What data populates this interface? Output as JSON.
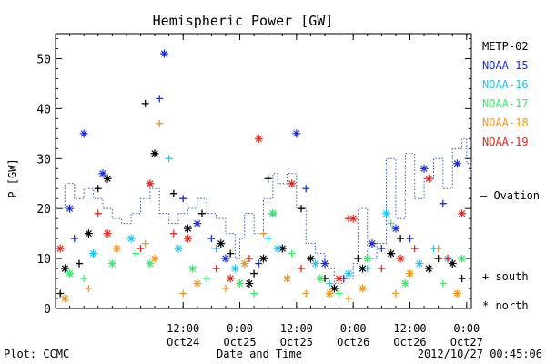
{
  "chart_data": {
    "type": "scatter",
    "title": "Hemispheric Power [GW]",
    "ylabel": "P [GW]",
    "xlabel": "Date and Time",
    "ylim": [
      0,
      55
    ],
    "xlim": [
      "2012-10-23 09:00",
      "2012-10-27 01:00"
    ],
    "yticks": [
      0,
      10,
      20,
      30,
      40,
      50
    ],
    "xticks": [
      {
        "t": "2012-10-24 12:00",
        "label": "12:00",
        "sub": "Oct24"
      },
      {
        "t": "2012-10-25 00:00",
        "label": "0:00",
        "sub": "Oct25"
      },
      {
        "t": "2012-10-25 12:00",
        "label": "12:00",
        "sub": "Oct25"
      },
      {
        "t": "2012-10-26 00:00",
        "label": "0:00",
        "sub": "Oct26"
      },
      {
        "t": "2012-10-26 12:00",
        "label": "12:00",
        "sub": "Oct26"
      },
      {
        "t": "2012-10-27 00:00",
        "label": "0:00",
        "sub": "Oct27"
      }
    ],
    "legend_placement": "right",
    "series": [
      {
        "name": "METP-02",
        "color": "#000000",
        "north": [
          [
            "2012-10-23 11:00",
            8
          ],
          [
            "2012-10-23 16:00",
            15
          ],
          [
            "2012-10-23 20:00",
            26
          ],
          [
            "2012-10-24 06:00",
            31
          ],
          [
            "2012-10-24 13:00",
            16
          ],
          [
            "2012-10-24 20:00",
            13
          ],
          [
            "2012-10-25 02:00",
            5
          ],
          [
            "2012-10-25 05:00",
            10
          ],
          [
            "2012-10-25 09:00",
            12
          ],
          [
            "2012-10-25 15:00",
            10
          ],
          [
            "2012-10-25 20:00",
            4
          ],
          [
            "2012-10-26 02:00",
            8
          ],
          [
            "2012-10-26 08:00",
            11
          ],
          [
            "2012-10-26 16:00",
            8
          ],
          [
            "2012-10-26 21:00",
            9
          ]
        ],
        "south": [
          [
            "2012-10-23 10:00",
            3
          ],
          [
            "2012-10-23 14:00",
            9
          ],
          [
            "2012-10-23 18:00",
            24
          ],
          [
            "2012-10-24 04:00",
            41
          ],
          [
            "2012-10-24 10:00",
            23
          ],
          [
            "2012-10-24 16:00",
            19
          ],
          [
            "2012-10-24 22:00",
            11
          ],
          [
            "2012-10-25 03:00",
            7
          ],
          [
            "2012-10-25 06:00",
            26
          ],
          [
            "2012-10-25 13:00",
            20
          ],
          [
            "2012-10-25 18:00",
            6
          ],
          [
            "2012-10-26 01:00",
            10
          ],
          [
            "2012-10-26 10:00",
            14
          ],
          [
            "2012-10-26 18:00",
            10
          ],
          [
            "2012-10-26 23:00",
            6
          ]
        ]
      },
      {
        "name": "NOAA-15",
        "color": "#1a2ce0",
        "north": [
          [
            "2012-10-23 12:00",
            20
          ],
          [
            "2012-10-23 15:00",
            35
          ],
          [
            "2012-10-23 19:00",
            27
          ],
          [
            "2012-10-24 08:00",
            51
          ],
          [
            "2012-10-24 15:00",
            17
          ],
          [
            "2012-10-24 21:00",
            10
          ],
          [
            "2012-10-25 07:00",
            19
          ],
          [
            "2012-10-25 12:00",
            35
          ],
          [
            "2012-10-25 18:00",
            9
          ],
          [
            "2012-10-26 04:00",
            13
          ],
          [
            "2012-10-26 09:00",
            16
          ],
          [
            "2012-10-26 15:00",
            28
          ],
          [
            "2012-10-26 22:00",
            29
          ]
        ],
        "south": [
          [
            "2012-10-23 13:00",
            14
          ],
          [
            "2012-10-24 07:00",
            42
          ],
          [
            "2012-10-24 12:00",
            22
          ],
          [
            "2012-10-24 18:00",
            14
          ],
          [
            "2012-10-25 04:00",
            9
          ],
          [
            "2012-10-25 14:00",
            24
          ],
          [
            "2012-10-25 22:00",
            6
          ],
          [
            "2012-10-26 06:00",
            12
          ],
          [
            "2012-10-26 12:00",
            14
          ],
          [
            "2012-10-26 19:00",
            21
          ]
        ]
      },
      {
        "name": "NOAA-16",
        "color": "#22c4f0",
        "north": [
          [
            "2012-10-23 17:00",
            11
          ],
          [
            "2012-10-24 01:00",
            14
          ],
          [
            "2012-10-24 11:00",
            12
          ],
          [
            "2012-10-24 23:00",
            8
          ],
          [
            "2012-10-25 08:00",
            12
          ],
          [
            "2012-10-25 16:00",
            9
          ],
          [
            "2012-10-25 23:00",
            7
          ],
          [
            "2012-10-26 07:00",
            19
          ],
          [
            "2012-10-26 14:00",
            9
          ],
          [
            "2012-10-26 20:00",
            10
          ]
        ],
        "south": [
          [
            "2012-10-24 09:00",
            30
          ],
          [
            "2012-10-24 19:00",
            12
          ],
          [
            "2012-10-25 06:00",
            14
          ],
          [
            "2012-10-25 19:00",
            5
          ],
          [
            "2012-10-26 03:00",
            8
          ],
          [
            "2012-10-26 17:00",
            12
          ]
        ]
      },
      {
        "name": "NOAA-17",
        "color": "#33ee66",
        "north": [
          [
            "2012-10-23 12:00",
            7
          ],
          [
            "2012-10-23 21:00",
            9
          ],
          [
            "2012-10-24 05:00",
            9
          ],
          [
            "2012-10-24 14:00",
            8
          ],
          [
            "2012-10-25 00:00",
            5
          ],
          [
            "2012-10-25 07:00",
            19
          ],
          [
            "2012-10-25 17:00",
            6
          ],
          [
            "2012-10-26 03:00",
            10
          ],
          [
            "2012-10-26 11:00",
            5
          ],
          [
            "2012-10-26 23:00",
            10
          ]
        ],
        "south": [
          [
            "2012-10-23 15:00",
            6
          ],
          [
            "2012-10-24 02:00",
            11
          ],
          [
            "2012-10-24 17:00",
            6
          ],
          [
            "2012-10-25 03:00",
            3
          ],
          [
            "2012-10-25 11:00",
            11
          ],
          [
            "2012-10-25 21:00",
            3
          ],
          [
            "2012-10-26 08:00",
            17
          ],
          [
            "2012-10-26 19:00",
            5
          ]
        ]
      },
      {
        "name": "NOAA-18",
        "color": "#f0961e",
        "north": [
          [
            "2012-10-23 11:00",
            2
          ],
          [
            "2012-10-23 22:00",
            12
          ],
          [
            "2012-10-24 06:00",
            10
          ],
          [
            "2012-10-24 15:00",
            5
          ],
          [
            "2012-10-25 01:00",
            9
          ],
          [
            "2012-10-25 10:00",
            6
          ],
          [
            "2012-10-25 19:00",
            3
          ],
          [
            "2012-10-26 02:00",
            4
          ],
          [
            "2012-10-26 12:00",
            7
          ],
          [
            "2012-10-26 22:00",
            3
          ]
        ],
        "south": [
          [
            "2012-10-23 16:00",
            4
          ],
          [
            "2012-10-24 04:00",
            13
          ],
          [
            "2012-10-24 07:00",
            37
          ],
          [
            "2012-10-24 12:00",
            3
          ],
          [
            "2012-10-24 21:00",
            4
          ],
          [
            "2012-10-25 05:00",
            15
          ],
          [
            "2012-10-25 14:00",
            3
          ],
          [
            "2012-10-25 23:00",
            2
          ],
          [
            "2012-10-26 09:00",
            3
          ],
          [
            "2012-10-26 18:00",
            12
          ]
        ]
      },
      {
        "name": "NOAA-19",
        "color": "#e6281e",
        "north": [
          [
            "2012-10-23 10:00",
            12
          ],
          [
            "2012-10-23 20:00",
            15
          ],
          [
            "2012-10-24 05:00",
            25
          ],
          [
            "2012-10-24 13:00",
            14
          ],
          [
            "2012-10-24 22:00",
            6
          ],
          [
            "2012-10-25 04:00",
            34
          ],
          [
            "2012-10-25 11:00",
            25
          ],
          [
            "2012-10-25 21:00",
            6
          ],
          [
            "2012-10-26 00:00",
            18
          ],
          [
            "2012-10-26 10:00",
            10
          ],
          [
            "2012-10-26 16:00",
            26
          ],
          [
            "2012-10-26 23:00",
            19
          ]
        ],
        "south": [
          [
            "2012-10-23 18:00",
            19
          ],
          [
            "2012-10-24 03:00",
            12
          ],
          [
            "2012-10-24 10:00",
            15
          ],
          [
            "2012-10-24 19:00",
            8
          ],
          [
            "2012-10-25 02:00",
            10
          ],
          [
            "2012-10-25 13:00",
            8
          ],
          [
            "2012-10-25 23:00",
            18
          ],
          [
            "2012-10-26 06:00",
            8
          ],
          [
            "2012-10-26 13:00",
            12
          ],
          [
            "2012-10-26 20:00",
            10
          ]
        ]
      }
    ],
    "model": {
      "name": "— Ovation Prime HPI",
      "color": "#2255cc",
      "line": "dotted-step",
      "points": [
        [
          "2012-10-23 09:00",
          20
        ],
        [
          "2012-10-23 11:00",
          25
        ],
        [
          "2012-10-23 13:00",
          22
        ],
        [
          "2012-10-23 15:00",
          24
        ],
        [
          "2012-10-23 17:00",
          22
        ],
        [
          "2012-10-23 19:00",
          20
        ],
        [
          "2012-10-23 21:00",
          18
        ],
        [
          "2012-10-23 23:00",
          17
        ],
        [
          "2012-10-24 01:00",
          19
        ],
        [
          "2012-10-24 03:00",
          22
        ],
        [
          "2012-10-24 05:00",
          24
        ],
        [
          "2012-10-24 07:00",
          19
        ],
        [
          "2012-10-24 09:00",
          17
        ],
        [
          "2012-10-24 11:00",
          19
        ],
        [
          "2012-10-24 13:00",
          20
        ],
        [
          "2012-10-24 15:00",
          22
        ],
        [
          "2012-10-24 17:00",
          19
        ],
        [
          "2012-10-24 19:00",
          18
        ],
        [
          "2012-10-24 21:00",
          15
        ],
        [
          "2012-10-24 23:00",
          10
        ],
        [
          "2012-10-25 00:00",
          14
        ],
        [
          "2012-10-25 01:00",
          19
        ],
        [
          "2012-10-25 03:00",
          15
        ],
        [
          "2012-10-25 05:00",
          22
        ],
        [
          "2012-10-25 07:00",
          27
        ],
        [
          "2012-10-25 08:00",
          25
        ],
        [
          "2012-10-25 10:00",
          27
        ],
        [
          "2012-10-25 12:00",
          20
        ],
        [
          "2012-10-25 14:00",
          13
        ],
        [
          "2012-10-25 16:00",
          11
        ],
        [
          "2012-10-25 18:00",
          8
        ],
        [
          "2012-10-25 20:00",
          5
        ],
        [
          "2012-10-25 22:00",
          6
        ],
        [
          "2012-10-26 00:00",
          9
        ],
        [
          "2012-10-26 01:00",
          20
        ],
        [
          "2012-10-26 03:00",
          10
        ],
        [
          "2012-10-26 05:00",
          13
        ],
        [
          "2012-10-26 07:00",
          30
        ],
        [
          "2012-10-26 09:00",
          18
        ],
        [
          "2012-10-26 11:00",
          31
        ],
        [
          "2012-10-26 13:00",
          22
        ],
        [
          "2012-10-26 15:00",
          26
        ],
        [
          "2012-10-26 17:00",
          30
        ],
        [
          "2012-10-26 19:00",
          24
        ],
        [
          "2012-10-26 21:00",
          32
        ],
        [
          "2012-10-26 23:00",
          34
        ],
        [
          "2012-10-27 00:00",
          29
        ],
        [
          "2012-10-27 01:00",
          27
        ]
      ]
    },
    "symbol_legend": [
      {
        "symbol": "+",
        "label": "south"
      },
      {
        "symbol": "*",
        "label": "north"
      }
    ]
  },
  "footer": {
    "plot_by": "Plot: CCMC",
    "generated": "2012/10/27 00:45:06"
  }
}
